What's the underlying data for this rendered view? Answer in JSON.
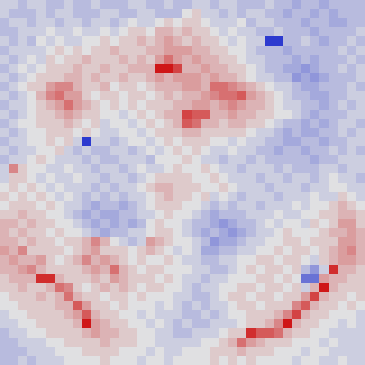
{
  "chart_data": {
    "type": "heatmap",
    "tick_labels": false,
    "zlim": [
      -10,
      10
    ],
    "cells": [
      [
        -1,
        -1,
        -2,
        -1,
        -1,
        -2,
        -2,
        -1,
        -2,
        -2,
        -1,
        -2,
        -2,
        -2,
        -1,
        -1,
        -2,
        -2,
        -1,
        -2,
        -2,
        -1,
        -1,
        -2,
        -1,
        -1,
        -2,
        -2,
        -2,
        -1,
        -2,
        -2,
        -3,
        -2,
        -2,
        -3,
        -2,
        -2,
        -2,
        -2
      ],
      [
        -1,
        -2,
        -2,
        -2,
        -1,
        -2,
        -1,
        -1,
        -2,
        -2,
        -2,
        -1,
        -1,
        -2,
        -2,
        -1,
        -1,
        -2,
        -2,
        -2,
        0,
        1,
        -1,
        -1,
        -2,
        -1,
        -2,
        -1,
        -1,
        -2,
        -2,
        -3,
        -2,
        -2,
        -3,
        -2,
        -3,
        -2,
        -2,
        -2
      ],
      [
        -2,
        -1,
        -1,
        -2,
        -1,
        -1,
        -2,
        -1,
        -1,
        -2,
        -1,
        -1,
        -2,
        -1,
        0,
        -1,
        -1,
        0,
        1,
        0,
        1,
        1,
        0,
        -1,
        -1,
        -1,
        0,
        -2,
        -1,
        -1,
        -2,
        -2,
        -2,
        -3,
        -2,
        -2,
        -3,
        -3,
        -2,
        -2
      ],
      [
        -2,
        -2,
        -1,
        -1,
        -1,
        0,
        -1,
        -1,
        0,
        -1,
        -1,
        0,
        -1,
        0,
        1,
        1,
        0,
        2,
        2,
        1,
        2,
        1,
        1,
        0,
        -1,
        0,
        -1,
        -1,
        -2,
        -2,
        -1,
        -2,
        -2,
        -2,
        -3,
        -2,
        -2,
        -2,
        -2,
        -1
      ],
      [
        -1,
        -2,
        -1,
        -2,
        0,
        -1,
        0,
        -1,
        -1,
        0,
        0,
        1,
        0,
        1,
        1,
        2,
        1,
        2,
        3,
        2,
        1,
        2,
        1,
        1,
        0,
        -1,
        0,
        -1,
        -1,
        -9,
        -9,
        -2,
        -2,
        -1,
        -2,
        -3,
        -2,
        -2,
        -1,
        -2
      ],
      [
        -2,
        -1,
        -1,
        -1,
        -1,
        0,
        1,
        0,
        1,
        0,
        1,
        1,
        2,
        1,
        1,
        1,
        2,
        2,
        3,
        3,
        3,
        2,
        2,
        1,
        1,
        0,
        0,
        -1,
        -2,
        -2,
        -2,
        -3,
        -2,
        -2,
        -2,
        -2,
        -2,
        -1,
        -2,
        -1
      ],
      [
        -1,
        -2,
        -1,
        0,
        -1,
        1,
        0,
        1,
        1,
        2,
        1,
        1,
        1,
        2,
        1,
        2,
        1,
        3,
        5,
        3,
        2,
        3,
        2,
        2,
        1,
        1,
        0,
        -1,
        -1,
        -2,
        -2,
        -2,
        -3,
        -2,
        -3,
        -2,
        -2,
        -2,
        -1,
        -2
      ],
      [
        -2,
        -1,
        0,
        -1,
        0,
        1,
        1,
        1,
        2,
        1,
        1,
        2,
        1,
        1,
        2,
        2,
        2,
        9,
        9,
        7,
        2,
        2,
        3,
        2,
        2,
        1,
        1,
        0,
        -1,
        -2,
        -2,
        -3,
        -3,
        -4,
        -3,
        -2,
        -2,
        -1,
        -2,
        -1
      ],
      [
        -1,
        -2,
        -1,
        0,
        1,
        1,
        1,
        2,
        2,
        1,
        2,
        1,
        1,
        2,
        1,
        1,
        2,
        3,
        2,
        3,
        3,
        3,
        2,
        3,
        2,
        2,
        1,
        0,
        -1,
        -1,
        -2,
        -2,
        -4,
        -3,
        -4,
        -3,
        -2,
        -2,
        -2,
        -1
      ],
      [
        -2,
        -1,
        0,
        1,
        1,
        3,
        4,
        4,
        2,
        1,
        1,
        2,
        0,
        1,
        1,
        0,
        1,
        2,
        2,
        2,
        3,
        3,
        2,
        5,
        5,
        4,
        3,
        2,
        1,
        0,
        -1,
        -1,
        -2,
        -3,
        -3,
        -2,
        -2,
        -2,
        -1,
        -2
      ],
      [
        -1,
        -2,
        -1,
        0,
        2,
        4,
        5,
        3,
        3,
        1,
        0,
        1,
        1,
        0,
        1,
        1,
        0,
        1,
        2,
        1,
        2,
        2,
        3,
        4,
        5,
        5,
        6,
        3,
        2,
        1,
        0,
        -1,
        -2,
        -2,
        -3,
        -3,
        -2,
        -2,
        -1,
        -1
      ],
      [
        -2,
        -1,
        -1,
        0,
        1,
        2,
        3,
        5,
        3,
        2,
        1,
        0,
        1,
        0,
        1,
        0,
        1,
        1,
        1,
        2,
        2,
        3,
        3,
        2,
        3,
        4,
        3,
        2,
        2,
        1,
        0,
        -1,
        -1,
        -2,
        -2,
        -3,
        -2,
        -1,
        -2,
        -1
      ],
      [
        -1,
        -2,
        -1,
        0,
        1,
        1,
        2,
        3,
        2,
        1,
        1,
        0,
        0,
        -1,
        0,
        1,
        0,
        1,
        2,
        2,
        7,
        6,
        6,
        2,
        2,
        3,
        2,
        2,
        1,
        1,
        0,
        0,
        -1,
        -2,
        -3,
        -2,
        -2,
        -2,
        -1,
        -1
      ],
      [
        -2,
        -1,
        0,
        0,
        1,
        1,
        1,
        2,
        1,
        0,
        1,
        -1,
        0,
        0,
        -1,
        0,
        1,
        0,
        1,
        2,
        6,
        5,
        2,
        2,
        1,
        2,
        2,
        1,
        1,
        0,
        -1,
        -2,
        -2,
        -3,
        -2,
        -3,
        -2,
        -1,
        -1,
        -2
      ],
      [
        -1,
        -2,
        -1,
        0,
        0,
        1,
        1,
        1,
        0,
        1,
        0,
        -1,
        -1,
        0,
        0,
        -1,
        0,
        1,
        1,
        1,
        2,
        2,
        1,
        1,
        1,
        1,
        1,
        0,
        -1,
        -1,
        -2,
        -3,
        -2,
        -3,
        -3,
        -2,
        -2,
        -1,
        -2,
        -1
      ],
      [
        -2,
        -1,
        -1,
        0,
        0,
        1,
        0,
        1,
        -1,
        -9,
        -1,
        -1,
        -2,
        -1,
        0,
        0,
        -1,
        0,
        1,
        0,
        1,
        1,
        1,
        0,
        0,
        -1,
        0,
        -1,
        -1,
        -2,
        -2,
        -3,
        -3,
        -2,
        -2,
        -3,
        -2,
        -2,
        -1,
        -1
      ],
      [
        -1,
        -2,
        -1,
        -1,
        0,
        0,
        1,
        -1,
        -2,
        -1,
        -2,
        -2,
        -1,
        -1,
        -2,
        -1,
        0,
        -1,
        0,
        1,
        0,
        1,
        0,
        -1,
        -1,
        0,
        -1,
        -1,
        -2,
        -2,
        -3,
        -2,
        -2,
        -3,
        -2,
        -2,
        -1,
        -2,
        -1,
        -2
      ],
      [
        -2,
        -1,
        -1,
        0,
        1,
        0,
        -1,
        -1,
        -1,
        -2,
        -1,
        -2,
        -2,
        -1,
        -1,
        -1,
        -2,
        0,
        0,
        0,
        1,
        0,
        -1,
        -1,
        -2,
        -1,
        -1,
        -2,
        -1,
        -2,
        -2,
        -2,
        -2,
        -2,
        -3,
        -2,
        -2,
        -1,
        -1,
        -1
      ],
      [
        -1,
        4,
        1,
        0,
        0,
        -1,
        -1,
        0,
        -1,
        -1,
        -2,
        -1,
        -1,
        -2,
        -1,
        0,
        -1,
        -1,
        0,
        1,
        0,
        0,
        1,
        0,
        -1,
        -1,
        -2,
        -1,
        -1,
        -1,
        -2,
        -1,
        -2,
        -2,
        -2,
        -1,
        -1,
        -2,
        -1,
        -1
      ],
      [
        -1,
        1,
        1,
        0,
        -1,
        0,
        -1,
        -1,
        0,
        -1,
        -1,
        -2,
        -1,
        -1,
        -2,
        -1,
        0,
        1,
        1,
        1,
        1,
        0,
        0,
        1,
        0,
        -1,
        -1,
        -1,
        -2,
        -1,
        -1,
        -2,
        -1,
        -1,
        -2,
        -1,
        0,
        -1,
        -1,
        -2
      ],
      [
        0,
        1,
        0,
        1,
        0,
        -1,
        0,
        -1,
        -1,
        -1,
        -2,
        -1,
        -2,
        -1,
        -1,
        0,
        1,
        2,
        2,
        1,
        1,
        1,
        0,
        0,
        1,
        0,
        -1,
        -1,
        -1,
        -2,
        -1,
        -1,
        -1,
        -2,
        -1,
        -1,
        0,
        0,
        -1,
        -1
      ],
      [
        1,
        0,
        1,
        0,
        1,
        0,
        -1,
        0,
        -1,
        -2,
        -1,
        -2,
        -1,
        -2,
        -1,
        -1,
        0,
        1,
        2,
        1,
        1,
        0,
        1,
        -1,
        0,
        -1,
        -2,
        -1,
        -1,
        -1,
        -2,
        -1,
        -1,
        -1,
        0,
        -1,
        -1,
        1,
        0,
        -1
      ],
      [
        0,
        1,
        1,
        1,
        0,
        1,
        0,
        -1,
        -1,
        -2,
        -3,
        -2,
        -2,
        -3,
        -2,
        -1,
        0,
        1,
        1,
        1,
        0,
        0,
        -1,
        -2,
        -1,
        -2,
        -1,
        -1,
        -2,
        -1,
        -1,
        -1,
        0,
        -1,
        0,
        0,
        1,
        2,
        1,
        0
      ],
      [
        1,
        1,
        2,
        1,
        1,
        0,
        0,
        -1,
        -2,
        -3,
        -2,
        -3,
        -3,
        -2,
        -2,
        -1,
        -1,
        0,
        1,
        0,
        0,
        -1,
        -2,
        -3,
        -2,
        -2,
        -2,
        -1,
        -1,
        -1,
        0,
        -1,
        -1,
        0,
        0,
        1,
        1,
        2,
        2,
        1
      ],
      [
        2,
        2,
        1,
        2,
        1,
        1,
        0,
        0,
        -1,
        -2,
        -3,
        -2,
        -3,
        -2,
        -3,
        -2,
        0,
        1,
        0,
        0,
        -1,
        -2,
        -2,
        -3,
        -4,
        -3,
        -2,
        -2,
        -1,
        0,
        -1,
        0,
        0,
        -1,
        1,
        0,
        1,
        3,
        3,
        1
      ],
      [
        2,
        1,
        2,
        1,
        1,
        0,
        1,
        0,
        0,
        -1,
        -2,
        -3,
        -2,
        -2,
        -1,
        -1,
        0,
        1,
        1,
        0,
        -1,
        -2,
        -3,
        -2,
        -3,
        -4,
        -3,
        -2,
        -1,
        -1,
        0,
        1,
        0,
        0,
        0,
        1,
        2,
        2,
        3,
        2
      ],
      [
        2,
        2,
        1,
        2,
        1,
        1,
        0,
        1,
        1,
        2,
        4,
        2,
        0,
        -1,
        -2,
        -1,
        3,
        2,
        1,
        0,
        0,
        -1,
        -2,
        -4,
        -3,
        -3,
        -2,
        -1,
        -1,
        0,
        0,
        1,
        1,
        0,
        1,
        1,
        1,
        3,
        3,
        2
      ],
      [
        3,
        2,
        4,
        1,
        1,
        1,
        1,
        0,
        1,
        2,
        3,
        1,
        1,
        1,
        0,
        1,
        2,
        1,
        0,
        -1,
        0,
        -1,
        -3,
        -3,
        -2,
        -2,
        -1,
        -1,
        0,
        0,
        1,
        0,
        1,
        1,
        0,
        1,
        2,
        3,
        4,
        2
      ],
      [
        2,
        3,
        2,
        2,
        3,
        1,
        0,
        1,
        2,
        4,
        2,
        3,
        2,
        1,
        0,
        1,
        0,
        0,
        1,
        0,
        -1,
        -1,
        -2,
        -2,
        -1,
        -1,
        0,
        0,
        1,
        1,
        0,
        1,
        1,
        0,
        -1,
        1,
        2,
        3,
        3,
        2
      ],
      [
        2,
        2,
        3,
        4,
        2,
        1,
        1,
        1,
        1,
        2,
        3,
        2,
        5,
        2,
        1,
        0,
        1,
        1,
        0,
        0,
        0,
        -1,
        -1,
        -2,
        -2,
        -1,
        0,
        1,
        0,
        1,
        1,
        0,
        1,
        -2,
        -4,
        -1,
        8,
        2,
        2,
        1
      ],
      [
        1,
        2,
        2,
        2,
        8,
        8,
        2,
        1,
        1,
        1,
        2,
        1,
        3,
        2,
        1,
        1,
        1,
        0,
        1,
        0,
        -1,
        -1,
        -2,
        -1,
        -1,
        0,
        0,
        0,
        1,
        1,
        0,
        1,
        0,
        -6,
        -6,
        3,
        2,
        2,
        1,
        1
      ],
      [
        1,
        1,
        2,
        1,
        1,
        2,
        5,
        4,
        1,
        0,
        1,
        2,
        1,
        2,
        1,
        0,
        1,
        1,
        0,
        0,
        -1,
        -2,
        -1,
        -1,
        0,
        0,
        1,
        1,
        0,
        1,
        1,
        0,
        1,
        -1,
        2,
        9,
        2,
        1,
        1,
        1
      ],
      [
        0,
        1,
        1,
        1,
        2,
        1,
        2,
        5,
        2,
        1,
        1,
        0,
        1,
        1,
        0,
        1,
        0,
        0,
        0,
        -1,
        -1,
        -2,
        -2,
        -1,
        0,
        1,
        1,
        0,
        1,
        1,
        0,
        1,
        1,
        3,
        7,
        2,
        1,
        1,
        0,
        1
      ],
      [
        0,
        0,
        1,
        1,
        1,
        1,
        2,
        2,
        6,
        3,
        1,
        1,
        0,
        1,
        0,
        0,
        0,
        -1,
        0,
        -1,
        -2,
        -1,
        -2,
        -1,
        -1,
        0,
        1,
        1,
        0,
        1,
        1,
        1,
        4,
        6,
        2,
        1,
        1,
        0,
        1,
        0
      ],
      [
        -1,
        0,
        0,
        1,
        1,
        1,
        1,
        2,
        3,
        6,
        2,
        1,
        1,
        0,
        0,
        -1,
        0,
        -1,
        -1,
        -1,
        -2,
        -2,
        -1,
        -2,
        -1,
        0,
        0,
        1,
        1,
        1,
        2,
        4,
        7,
        2,
        1,
        1,
        0,
        0,
        0,
        -1
      ],
      [
        -1,
        -1,
        0,
        0,
        1,
        1,
        1,
        1,
        2,
        9,
        3,
        2,
        1,
        1,
        0,
        0,
        -1,
        0,
        -1,
        -2,
        -1,
        -2,
        -2,
        -1,
        -1,
        -1,
        0,
        1,
        1,
        2,
        4,
        9,
        2,
        1,
        1,
        0,
        0,
        -1,
        0,
        -1
      ],
      [
        -2,
        -1,
        -1,
        0,
        0,
        1,
        1,
        1,
        1,
        2,
        3,
        2,
        2,
        1,
        1,
        0,
        0,
        -1,
        -1,
        -2,
        -2,
        -1,
        -1,
        -1,
        0,
        1,
        1,
        8,
        6,
        6,
        5,
        2,
        1,
        1,
        0,
        0,
        -1,
        -1,
        -1,
        -1
      ],
      [
        -2,
        -2,
        -1,
        -1,
        -1,
        0,
        0,
        1,
        1,
        1,
        1,
        2,
        1,
        1,
        1,
        0,
        0,
        -1,
        -1,
        -1,
        -1,
        -1,
        0,
        0,
        1,
        2,
        5,
        3,
        2,
        1,
        1,
        1,
        0,
        0,
        0,
        -1,
        0,
        -1,
        -1,
        -1
      ],
      [
        -2,
        -2,
        -2,
        -1,
        -1,
        -1,
        0,
        0,
        0,
        1,
        1,
        1,
        1,
        0,
        0,
        0,
        -1,
        0,
        -1,
        -1,
        0,
        0,
        0,
        1,
        1,
        1,
        2,
        1,
        1,
        1,
        0,
        0,
        0,
        -1,
        0,
        0,
        -1,
        -1,
        -1,
        -1
      ],
      [
        -2,
        -2,
        -1,
        -2,
        -1,
        -1,
        -1,
        0,
        0,
        0,
        0,
        1,
        0,
        0,
        0,
        -1,
        0,
        0,
        -1,
        0,
        0,
        0,
        0,
        1,
        0,
        1,
        0,
        1,
        0,
        0,
        0,
        0,
        -1,
        0,
        0,
        -1,
        -1,
        0,
        -1,
        -1
      ]
    ]
  }
}
